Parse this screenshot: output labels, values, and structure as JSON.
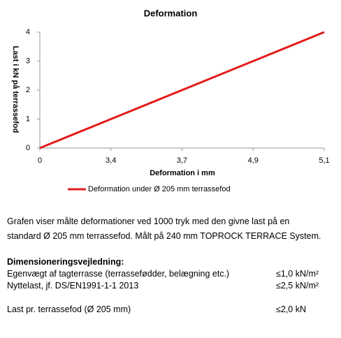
{
  "chart_data": {
    "type": "line",
    "title": "Deformation",
    "x_label": "Deformation i mm",
    "y_label": "Last i kN på terrassefod",
    "categories": [
      "0",
      "3,4",
      "3,7",
      "4,9",
      "5,1"
    ],
    "series": [
      {
        "name": "Deformation under Ø 205 mm terrassefod",
        "color": "#e31b1b",
        "values": [
          0,
          1,
          2,
          3,
          4
        ]
      }
    ],
    "ylim": [
      0,
      4
    ],
    "yticks": [
      0,
      1,
      2,
      3,
      4
    ],
    "grid": false,
    "legend": "bottom"
  },
  "document": {
    "intro": [
      "Grafen viser målte deformationer ved 1000 tryk med den givne last på en",
      "standard Ø 205  mm terrassefod. Målt på 240  mm TOPROCK TERRACE System."
    ],
    "heading": "Dimensioneringsvejledning:",
    "rows": [
      [
        "Egenvægt af tagterrasse (terrassefødder, belægning etc.)",
        "≤1,0 kN/m²"
      ],
      [
        "Nyttelast, jf. DS/EN1991-1-1 2013",
        "≤2,5 kN/m²"
      ],
      [
        "Last pr. terrassefod (Ø 205 mm)",
        "≤2,0 kN"
      ]
    ]
  }
}
